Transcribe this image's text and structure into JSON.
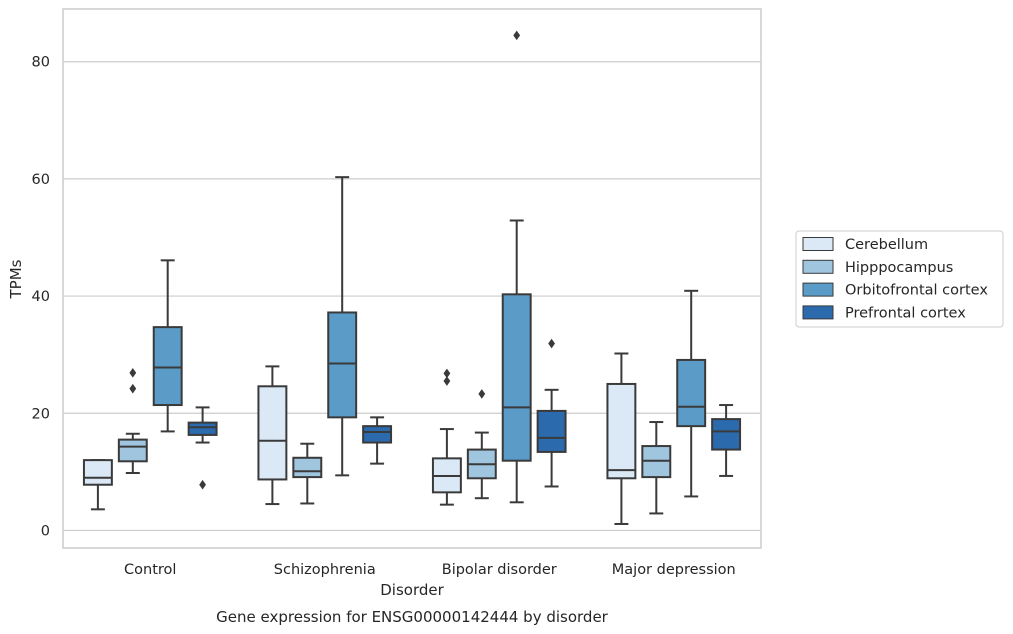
{
  "chart_data": {
    "type": "boxplot",
    "title": "",
    "caption": "Gene expression for ENSG00000142444 by disorder",
    "xlabel": "Disorder",
    "ylabel": "TPMs",
    "ylim": [
      -3,
      89
    ],
    "yticks": [
      0,
      20,
      40,
      60,
      80
    ],
    "grid": true,
    "legend_position": "right",
    "categories": [
      "Control",
      "Schizophrenia",
      "Bipolar disorder",
      "Major depression"
    ],
    "series": [
      {
        "name": "Cerebellum",
        "color": "#dbe9f6",
        "boxes": [
          {
            "whisker_low": 3.6,
            "q1": 7.8,
            "median": 9.0,
            "q3": 12.0,
            "whisker_high": 12.0,
            "outliers": []
          },
          {
            "whisker_low": 4.5,
            "q1": 8.7,
            "median": 15.3,
            "q3": 24.6,
            "whisker_high": 28.0,
            "outliers": []
          },
          {
            "whisker_low": 4.4,
            "q1": 6.5,
            "median": 9.3,
            "q3": 12.3,
            "whisker_high": 17.3,
            "outliers": [
              25.5,
              26.8
            ]
          },
          {
            "whisker_low": 1.1,
            "q1": 8.9,
            "median": 10.3,
            "q3": 25.0,
            "whisker_high": 30.2,
            "outliers": []
          }
        ]
      },
      {
        "name": "Hipppocampus",
        "color": "#9fc5df",
        "boxes": [
          {
            "whisker_low": 9.8,
            "q1": 11.8,
            "median": 14.3,
            "q3": 15.5,
            "whisker_high": 16.5,
            "outliers": [
              24.2,
              26.9
            ]
          },
          {
            "whisker_low": 4.6,
            "q1": 9.1,
            "median": 10.1,
            "q3": 12.4,
            "whisker_high": 14.8,
            "outliers": []
          },
          {
            "whisker_low": 5.5,
            "q1": 8.9,
            "median": 11.3,
            "q3": 13.8,
            "whisker_high": 16.7,
            "outliers": [
              23.3
            ]
          },
          {
            "whisker_low": 2.9,
            "q1": 9.1,
            "median": 11.9,
            "q3": 14.4,
            "whisker_high": 18.5,
            "outliers": []
          }
        ]
      },
      {
        "name": "Orbitofrontal cortex",
        "color": "#5a9bc8",
        "boxes": [
          {
            "whisker_low": 16.9,
            "q1": 21.4,
            "median": 27.8,
            "q3": 34.7,
            "whisker_high": 46.1,
            "outliers": []
          },
          {
            "whisker_low": 9.4,
            "q1": 19.3,
            "median": 28.5,
            "q3": 37.2,
            "whisker_high": 60.3,
            "outliers": []
          },
          {
            "whisker_low": 4.8,
            "q1": 11.9,
            "median": 21.0,
            "q3": 40.3,
            "whisker_high": 52.9,
            "outliers": [
              84.5
            ]
          },
          {
            "whisker_low": 5.8,
            "q1": 17.8,
            "median": 21.1,
            "q3": 29.1,
            "whisker_high": 40.9,
            "outliers": []
          }
        ]
      },
      {
        "name": "Prefrontal cortex",
        "color": "#2a6aad",
        "boxes": [
          {
            "whisker_low": 15.0,
            "q1": 16.3,
            "median": 17.6,
            "q3": 18.4,
            "whisker_high": 21.0,
            "outliers": [
              7.8
            ]
          },
          {
            "whisker_low": 11.4,
            "q1": 15.0,
            "median": 16.8,
            "q3": 17.8,
            "whisker_high": 19.3,
            "outliers": []
          },
          {
            "whisker_low": 7.5,
            "q1": 13.4,
            "median": 15.8,
            "q3": 20.4,
            "whisker_high": 24.0,
            "outliers": [
              31.9
            ]
          },
          {
            "whisker_low": 9.3,
            "q1": 13.8,
            "median": 16.9,
            "q3": 19.0,
            "whisker_high": 21.4,
            "outliers": []
          }
        ]
      }
    ]
  }
}
